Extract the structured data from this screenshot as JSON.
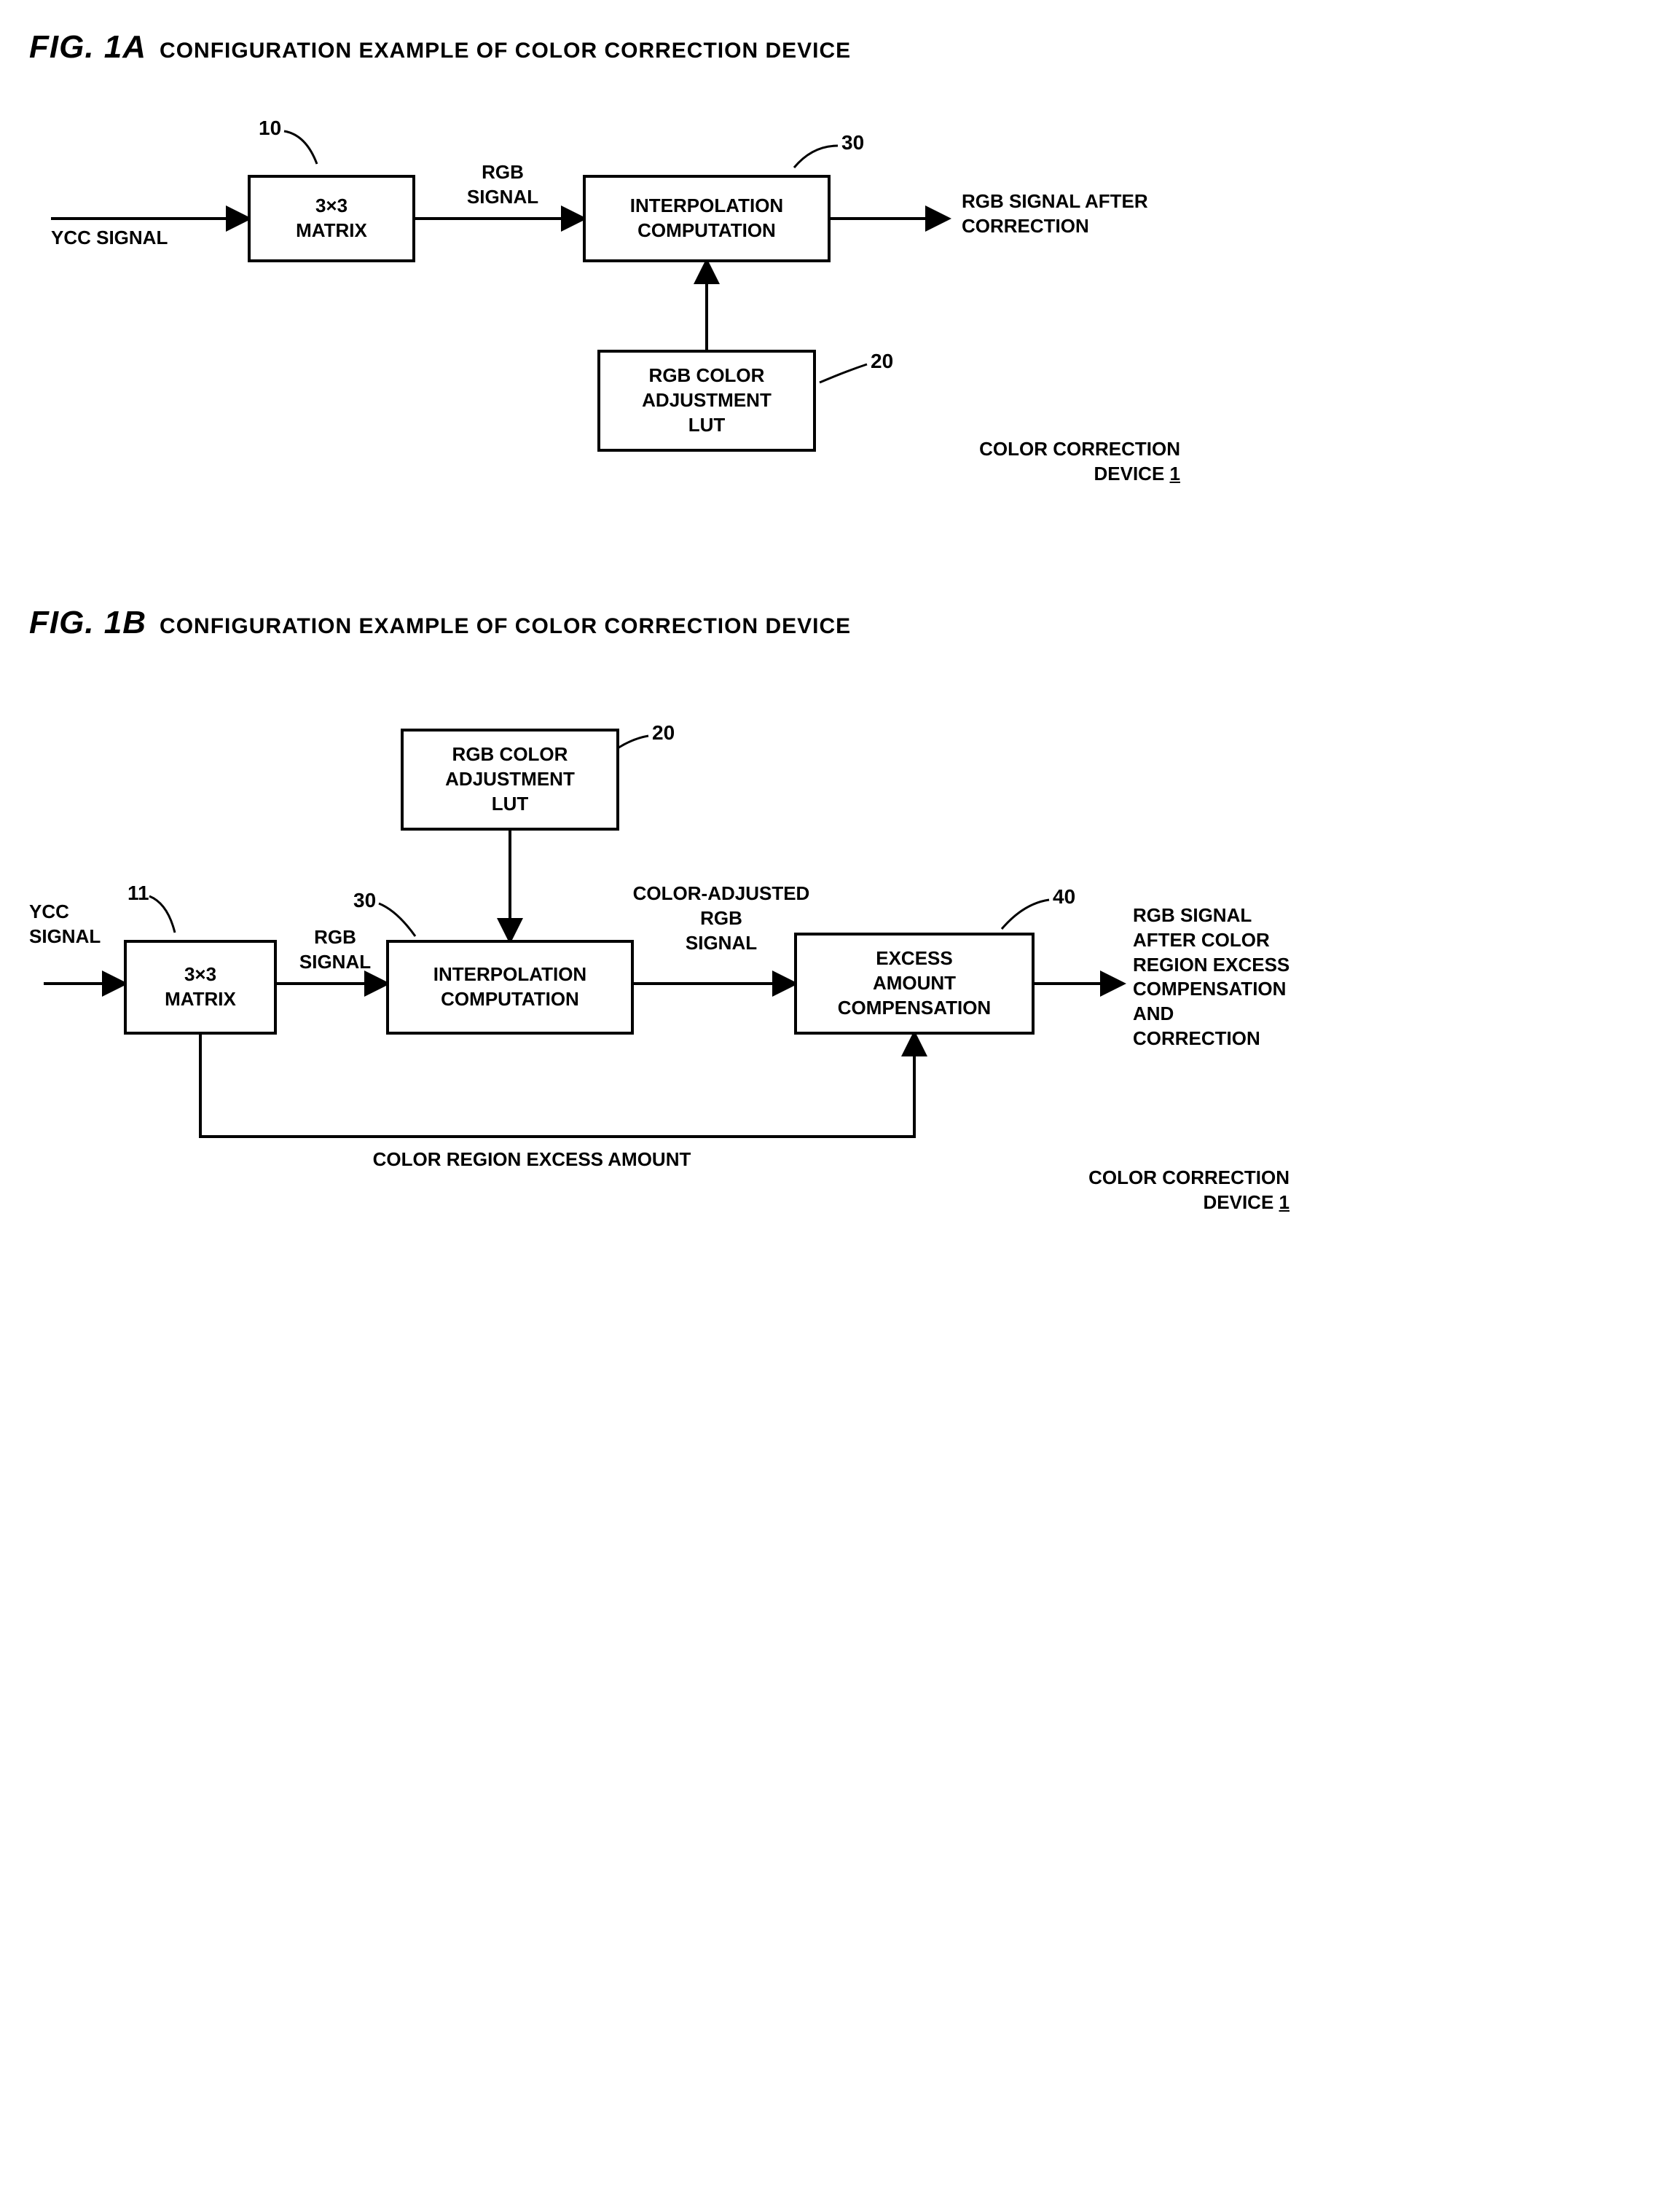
{
  "figA": {
    "label": "FIG. 1A",
    "title": "CONFIGURATION EXAMPLE OF COLOR CORRECTION DEVICE",
    "input_label": "YCC SIGNAL",
    "box_matrix": "3×3\nMATRIX",
    "box_interp": "INTERPOLATION\nCOMPUTATION",
    "box_lut": "RGB COLOR\nADJUSTMENT\nLUT",
    "sig_rgb": "RGB\nSIGNAL",
    "output_label": "RGB SIGNAL AFTER\nCORRECTION",
    "device_label": "COLOR CORRECTION\nDEVICE ",
    "device_num": "1",
    "ref10": "10",
    "ref20": "20",
    "ref30": "30"
  },
  "figB": {
    "label": "FIG. 1B",
    "title": "CONFIGURATION EXAMPLE OF COLOR CORRECTION DEVICE",
    "input_label": "YCC\nSIGNAL",
    "box_matrix": "3×3\nMATRIX",
    "box_interp": "INTERPOLATION\nCOMPUTATION",
    "box_lut": "RGB COLOR\nADJUSTMENT\nLUT",
    "box_excess": "EXCESS\nAMOUNT\nCOMPENSATION",
    "sig_rgb": "RGB\nSIGNAL",
    "sig_color_adj": "COLOR-ADJUSTED\nRGB\nSIGNAL",
    "output_label": "RGB SIGNAL\nAFTER COLOR\nREGION EXCESS\nCOMPENSATION\nAND\nCORRECTION",
    "excess_label": "COLOR REGION EXCESS AMOUNT",
    "device_label": "COLOR CORRECTION\nDEVICE ",
    "device_num": "1",
    "ref11": "11",
    "ref20": "20",
    "ref30": "30",
    "ref40": "40"
  },
  "style": {
    "stroke": "#000000",
    "stroke_width": 4,
    "font_main": 26,
    "font_fig_label": 44,
    "font_fig_title": 30,
    "bg": "#ffffff"
  }
}
